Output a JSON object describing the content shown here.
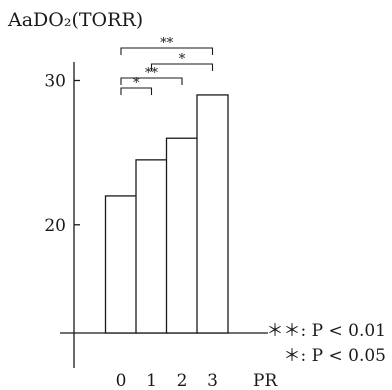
{
  "chart_data": {
    "type": "bar",
    "ylabel": "AaDO₂(TORR)",
    "xlabel": "PR",
    "categories": [
      "0",
      "1",
      "2",
      "3"
    ],
    "values": [
      22,
      24.5,
      26,
      29
    ],
    "ylim": [
      12.5,
      33.5
    ],
    "yticks": [
      20,
      30
    ],
    "grid": false,
    "significance": [
      {
        "from": "0",
        "to": "1",
        "label": "*"
      },
      {
        "from": "0",
        "to": "2",
        "label": "**"
      },
      {
        "from": "1",
        "to": "3",
        "label": "*"
      },
      {
        "from": "0",
        "to": "3",
        "label": "**"
      }
    ],
    "legend": [
      {
        "symbol": "＊＊",
        "text": ": P < 0.01"
      },
      {
        "symbol": "＊",
        "text": ": P < 0.05"
      }
    ]
  }
}
